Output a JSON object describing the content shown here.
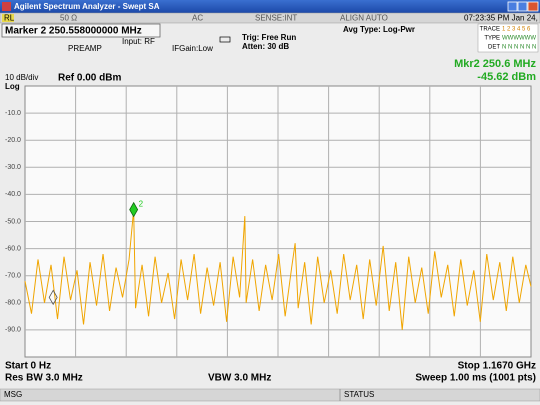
{
  "window": {
    "title": "Agilent Spectrum Analyzer - Swept SA"
  },
  "status_bar": [
    "RL",
    "50 Ω",
    "AC",
    "SENSE:INT",
    "ALIGN AUTO",
    "07:23:35 PM Jan 24, 2010"
  ],
  "settings": {
    "marker": "Marker 2  250.558000000 MHz",
    "input": "Input: RF",
    "preamp": "PREAMP",
    "ifgain": "IFGain:Low",
    "trig": "Trig: Free Run",
    "atten": "Atten: 30 dB",
    "avg": "Avg Type: Log-Pwr"
  },
  "trace_panel": {
    "rows": [
      [
        "TRACE",
        "1 2 3 4 5 6"
      ],
      [
        "TYPE",
        "WWWWWW"
      ],
      [
        "DET",
        "N N N N N N"
      ]
    ]
  },
  "chart_data": {
    "type": "line",
    "scale_label": "10 dB/div",
    "scale_type": "Log",
    "ref_level": "Ref 0.00 dBm",
    "marker_readout": [
      "Mkr2 250.6 MHz",
      "-45.62 dBm"
    ],
    "x": [
      0,
      15,
      30,
      45,
      60,
      75,
      90,
      105,
      120,
      135,
      150,
      165,
      180,
      195,
      210,
      225,
      240,
      250.6,
      255,
      270,
      285,
      300,
      315,
      330,
      345,
      360,
      375,
      390,
      405,
      420,
      435,
      450,
      465,
      480,
      495,
      507,
      510,
      525,
      540,
      555,
      570,
      585,
      600,
      615,
      623,
      630,
      645,
      660,
      675,
      690,
      705,
      720,
      735,
      750,
      765,
      780,
      795,
      810,
      826,
      840,
      855,
      870,
      885,
      900,
      915,
      930,
      945,
      960,
      975,
      990,
      1005,
      1020,
      1035,
      1050,
      1065,
      1080,
      1095,
      1110,
      1125,
      1140,
      1155,
      1167
    ],
    "series": [
      {
        "color": "#f0a500",
        "values": [
          -72,
          -84,
          -64,
          -80,
          -66,
          -86,
          -63,
          -79,
          -68,
          -88,
          -65,
          -81,
          -62,
          -83,
          -67,
          -78,
          -64,
          -45.62,
          -82,
          -66,
          -85,
          -63,
          -80,
          -69,
          -86,
          -64,
          -79,
          -62,
          -84,
          -67,
          -81,
          -65,
          -87,
          -63,
          -78,
          -48,
          -80,
          -64,
          -83,
          -66,
          -79,
          -62,
          -85,
          -67,
          -58,
          -82,
          -65,
          -88,
          -63,
          -80,
          -68,
          -84,
          -62,
          -79,
          -66,
          -86,
          -64,
          -81,
          -59,
          -83,
          -65,
          -90,
          -63,
          -80,
          -67,
          -84,
          -61,
          -78,
          -66,
          -85,
          -64,
          -81,
          -68,
          -87,
          -62,
          -79,
          -65,
          -83,
          -63,
          -80,
          -66,
          -74
        ]
      }
    ],
    "markers": [
      {
        "label": "2",
        "x": 250.6,
        "y": -45.62,
        "color": "#22cc22"
      },
      {
        "x": 65,
        "y": -78,
        "color": "#f0a500"
      }
    ],
    "xlim": [
      0,
      1167
    ],
    "ylim": [
      -100,
      0
    ],
    "yticks": [
      {
        "value": -10,
        "label": "-10.0"
      },
      {
        "value": -20,
        "label": "-20.0"
      },
      {
        "value": -30,
        "label": "-30.0"
      },
      {
        "value": -40,
        "label": "-40.0"
      },
      {
        "value": -50,
        "label": "-50.0"
      },
      {
        "value": -60,
        "label": "-60.0"
      },
      {
        "value": -70,
        "label": "-70.0"
      },
      {
        "value": -80,
        "label": "-80.0"
      },
      {
        "value": -90,
        "label": "-90.0"
      }
    ],
    "grid": true
  },
  "footer": {
    "start": "Start 0 Hz",
    "stop": "Stop 1.1670 GHz",
    "rbw": "Res BW 3.0 MHz",
    "vbw": "VBW 3.0 MHz",
    "sweep": "Sweep  1.00 ms (1001 pts)"
  },
  "bottom_bar": [
    "MSG",
    "STATUS"
  ]
}
